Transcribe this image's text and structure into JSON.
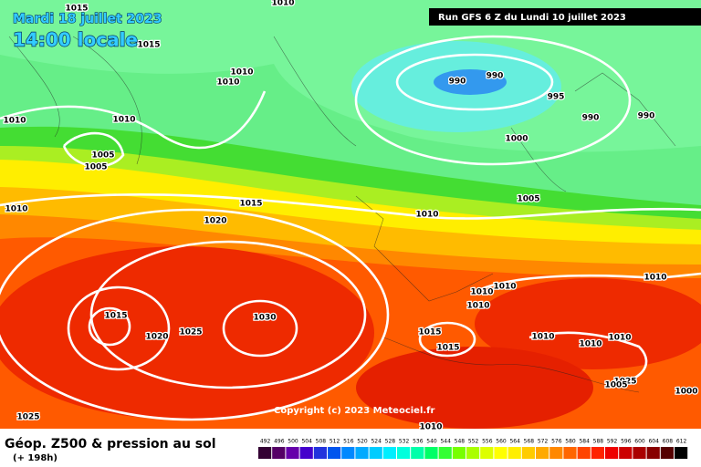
{
  "header": {
    "date": "Mardi 18 juillet 2023",
    "time": "14:00 locale",
    "run": "Run GFS 6 Z du Lundi 10 juillet 2023"
  },
  "copyright": "Copyright (c) 2023 Meteociel.fr",
  "footer": {
    "title": "Géop. Z500 & pression au sol",
    "lead": "(+ 198h)"
  },
  "scale": [
    492,
    496,
    500,
    504,
    508,
    512,
    516,
    520,
    524,
    528,
    532,
    536,
    540,
    544,
    548,
    552,
    556,
    560,
    564,
    568,
    572,
    576,
    580,
    584,
    588,
    592,
    596,
    600,
    604,
    608,
    612
  ],
  "isobar_labels": [
    1015,
    1010,
    1015,
    1010,
    1010,
    1010,
    1010,
    1005,
    1005,
    990,
    990,
    995,
    990,
    990,
    1000,
    1015,
    1020,
    1010,
    1005,
    1010,
    1010,
    1010,
    1010,
    1010,
    1015,
    1020,
    1025,
    1030,
    1015,
    1015,
    1010,
    1010,
    1010,
    1025,
    1005,
    1000,
    1025,
    1010
  ]
}
